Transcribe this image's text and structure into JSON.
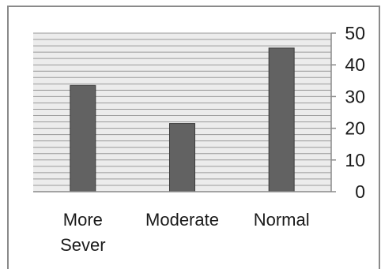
{
  "chart_data": {
    "type": "bar",
    "title": "",
    "xlabel": "",
    "ylabel": "",
    "categories": [
      "More Sever",
      "Moderate",
      "Normal"
    ],
    "category_lines": [
      [
        "More",
        "Sever"
      ],
      [
        "Moderate"
      ],
      [
        "Normal"
      ]
    ],
    "values": [
      33.5,
      21.5,
      45.3
    ],
    "ylim": [
      0,
      50
    ],
    "y_ticks": [
      0,
      10,
      20,
      30,
      40,
      50
    ],
    "y_minor_step": 2,
    "y_axis_side": "right",
    "grid": true,
    "legend": "none",
    "colors": {
      "bar_fill": "#626262",
      "bar_stroke": "#3c3c3c",
      "plot_background": "#ececec",
      "gridline": "#9a9a9a",
      "axis_line": "#8a8a8a",
      "text": "#1a1a1a"
    }
  }
}
